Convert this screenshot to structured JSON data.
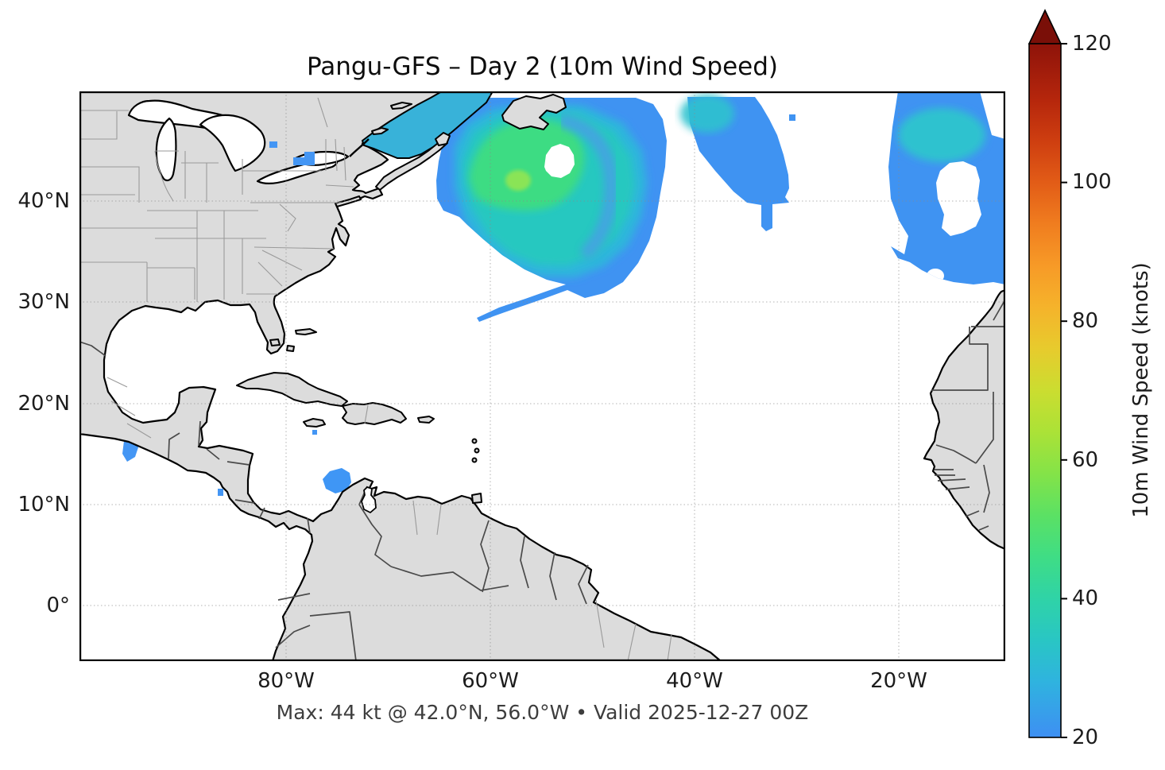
{
  "figure": {
    "title": "Pangu-GFS – Day 2 (10m Wind Speed)",
    "caption": "Max: 44 kt @ 42.0°N, 56.0°W • Valid 2025-12-27 00Z"
  },
  "axes": {
    "x_ticks": [
      "80°W",
      "60°W",
      "40°W",
      "20°W"
    ],
    "y_ticks": [
      "40°N",
      "30°N",
      "20°N",
      "10°N",
      "0°"
    ]
  },
  "colorbar": {
    "label": "10m Wind Speed (knots)",
    "ticks": [
      "120",
      "100",
      "80",
      "60",
      "40",
      "20"
    ],
    "min": 20,
    "max": 120,
    "extend": "max",
    "arrow_color": "#7a0f08",
    "stops": [
      {
        "v": 20,
        "color": "#3e8ff3"
      },
      {
        "v": 28,
        "color": "#2fb3df"
      },
      {
        "v": 34,
        "color": "#29c6c4"
      },
      {
        "v": 40,
        "color": "#2fd3a7"
      },
      {
        "v": 46,
        "color": "#3fdd85"
      },
      {
        "v": 52,
        "color": "#5be164"
      },
      {
        "v": 58,
        "color": "#84e348"
      },
      {
        "v": 64,
        "color": "#abe237"
      },
      {
        "v": 70,
        "color": "#cbdd30"
      },
      {
        "v": 76,
        "color": "#e7cb2d"
      },
      {
        "v": 82,
        "color": "#f5b32b"
      },
      {
        "v": 88,
        "color": "#f79a27"
      },
      {
        "v": 94,
        "color": "#f07d1f"
      },
      {
        "v": 100,
        "color": "#e25c17"
      },
      {
        "v": 106,
        "color": "#ce3e10"
      },
      {
        "v": 112,
        "color": "#b5260c"
      },
      {
        "v": 120,
        "color": "#8e130a"
      }
    ]
  },
  "chart_data": {
    "type": "heatmap",
    "title": "Pangu-GFS – Day 2 (10m Wind Speed)",
    "projection": "plate carrée, North Atlantic",
    "extent": {
      "lon": [
        -100,
        -9.7
      ],
      "lat": [
        -6,
        50.3
      ]
    },
    "x_tick_values": [
      -80,
      -60,
      -40,
      -20
    ],
    "y_tick_values": [
      40,
      30,
      20,
      10,
      0
    ],
    "grid": true,
    "units": "knots",
    "shading_threshold_kt": 20,
    "colorbar_range": [
      20,
      120
    ],
    "colorbar_extend": "max",
    "max_annotation": {
      "value_kt": 44,
      "lat": 42.0,
      "lon": -56.0
    },
    "valid_time": "2025-12-27 00Z",
    "wind_systems": [
      {
        "name": "primary mid-latitude cyclone",
        "center": {
          "lat": 42.0,
          "lon": -56.0
        },
        "peak_kt": 44,
        "approx_radius_deg": 11,
        "calm_eye": true,
        "notes": "large circular wind field SE of Newfoundland with SW-trailing tail; shading 20–44 kt"
      },
      {
        "name": "northern wind band",
        "center": {
          "lat": 45.5,
          "lon": -34.0
        },
        "peak_kt": 30,
        "notes": "elongated NW–SE comma clipped by the top edge"
      },
      {
        "name": "eastern Atlantic spiral",
        "center": {
          "lat": 41.0,
          "lon": -13.0
        },
        "peak_kt": 32,
        "calm_eye": true,
        "notes": "spiral band clipped by the eastern map edge, near Morocco"
      },
      {
        "name": "Caribbean patch off Venezuela",
        "center": {
          "lat": 12.3,
          "lon": -75.0
        },
        "peak_kt": 25
      },
      {
        "name": "Pacific coastal patch (Tehuantepec/Guatemala)",
        "center": {
          "lat": 15.6,
          "lon": -95.3
        },
        "peak_kt": 22
      },
      {
        "name": "Great Lakes specks (Huron / Ontario)",
        "center": {
          "lat": 44.5,
          "lon": -79.0
        },
        "peak_kt": 21
      },
      {
        "name": "speck south of Jamaica",
        "center": {
          "lat": 17.2,
          "lon": -77.3
        },
        "peak_kt": 21
      },
      {
        "name": "speck near Nicaragua coast",
        "center": {
          "lat": 11.2,
          "lon": -86.5
        },
        "peak_kt": 21
      },
      {
        "name": "tiny mid-Atlantic speck",
        "center": {
          "lat": 48.4,
          "lon": -30.5
        },
        "peak_kt": 20
      }
    ]
  }
}
